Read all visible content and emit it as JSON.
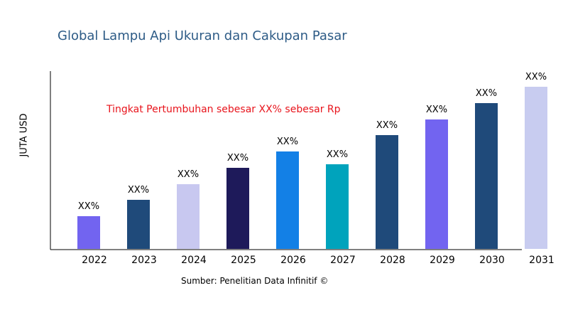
{
  "chart_data": {
    "type": "bar",
    "title": "Global Lampu Api Ukuran dan Cakupan Pasar",
    "xlabel": "",
    "ylabel": "JUTA USD",
    "categories": [
      "2022",
      "2023",
      "2024",
      "2025",
      "2026",
      "2027",
      "2028",
      "2029",
      "2030",
      "2031"
    ],
    "values": [
      46,
      69,
      91,
      114,
      137,
      119,
      160,
      182,
      205,
      228
    ],
    "data_labels": [
      "XX%",
      "XX%",
      "XX%",
      "XX%",
      "XX%",
      "XX%",
      "XX%",
      "XX%",
      "XX%",
      "XX%"
    ],
    "colors": [
      "#7264f0",
      "#1f4a7a",
      "#c8c8f0",
      "#1e1a5a",
      "#1380e6",
      "#00a3bc",
      "#1f4a7a",
      "#7264f0",
      "#1f4a7a",
      "#c8ccf0"
    ],
    "ylim": [
      0,
      250
    ],
    "grid": false,
    "legend": "none",
    "annotation": "Tingkat Pertumbuhan sebesar XX% sebesar Rp",
    "source": "Sumber: Penelitian Data Infinitif ©"
  }
}
